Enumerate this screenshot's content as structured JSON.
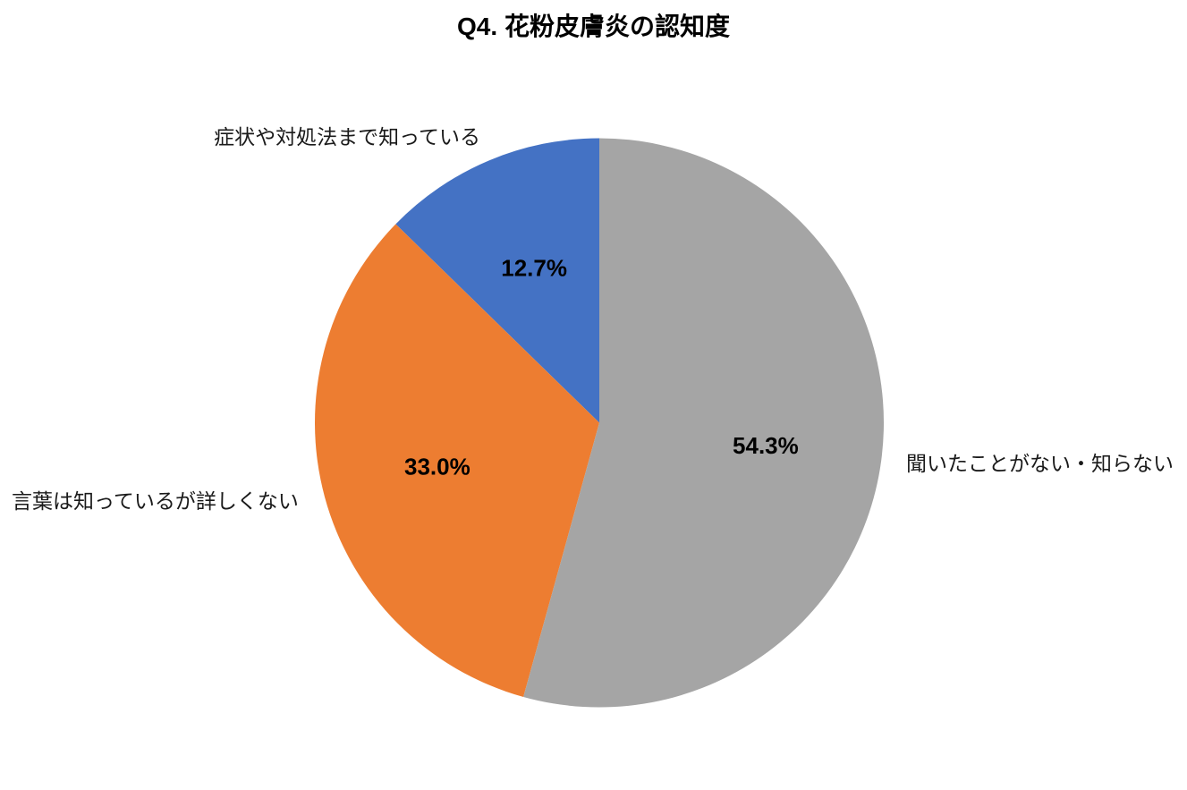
{
  "page": {
    "background": "#FFFFFF"
  },
  "chart_data": {
    "type": "pie",
    "title": "Q4. 花粉皮膚炎の認知度",
    "start_angle_deg": 90,
    "direction": "counterclockwise",
    "value_suffix": "%",
    "value_decimals": 1,
    "legend_position": "none",
    "label_color": "#1A1A1A",
    "value_label_color": "#000000",
    "slices": [
      {
        "label": "症状や対処法まで知っている",
        "value": 12.7,
        "color": "#4472C4"
      },
      {
        "label": "言葉は知っているが詳しくない",
        "value": 33.0,
        "color": "#ED7D31"
      },
      {
        "label": "聞いたことがない・知らない",
        "value": 54.3,
        "color": "#A5A5A5"
      }
    ]
  }
}
